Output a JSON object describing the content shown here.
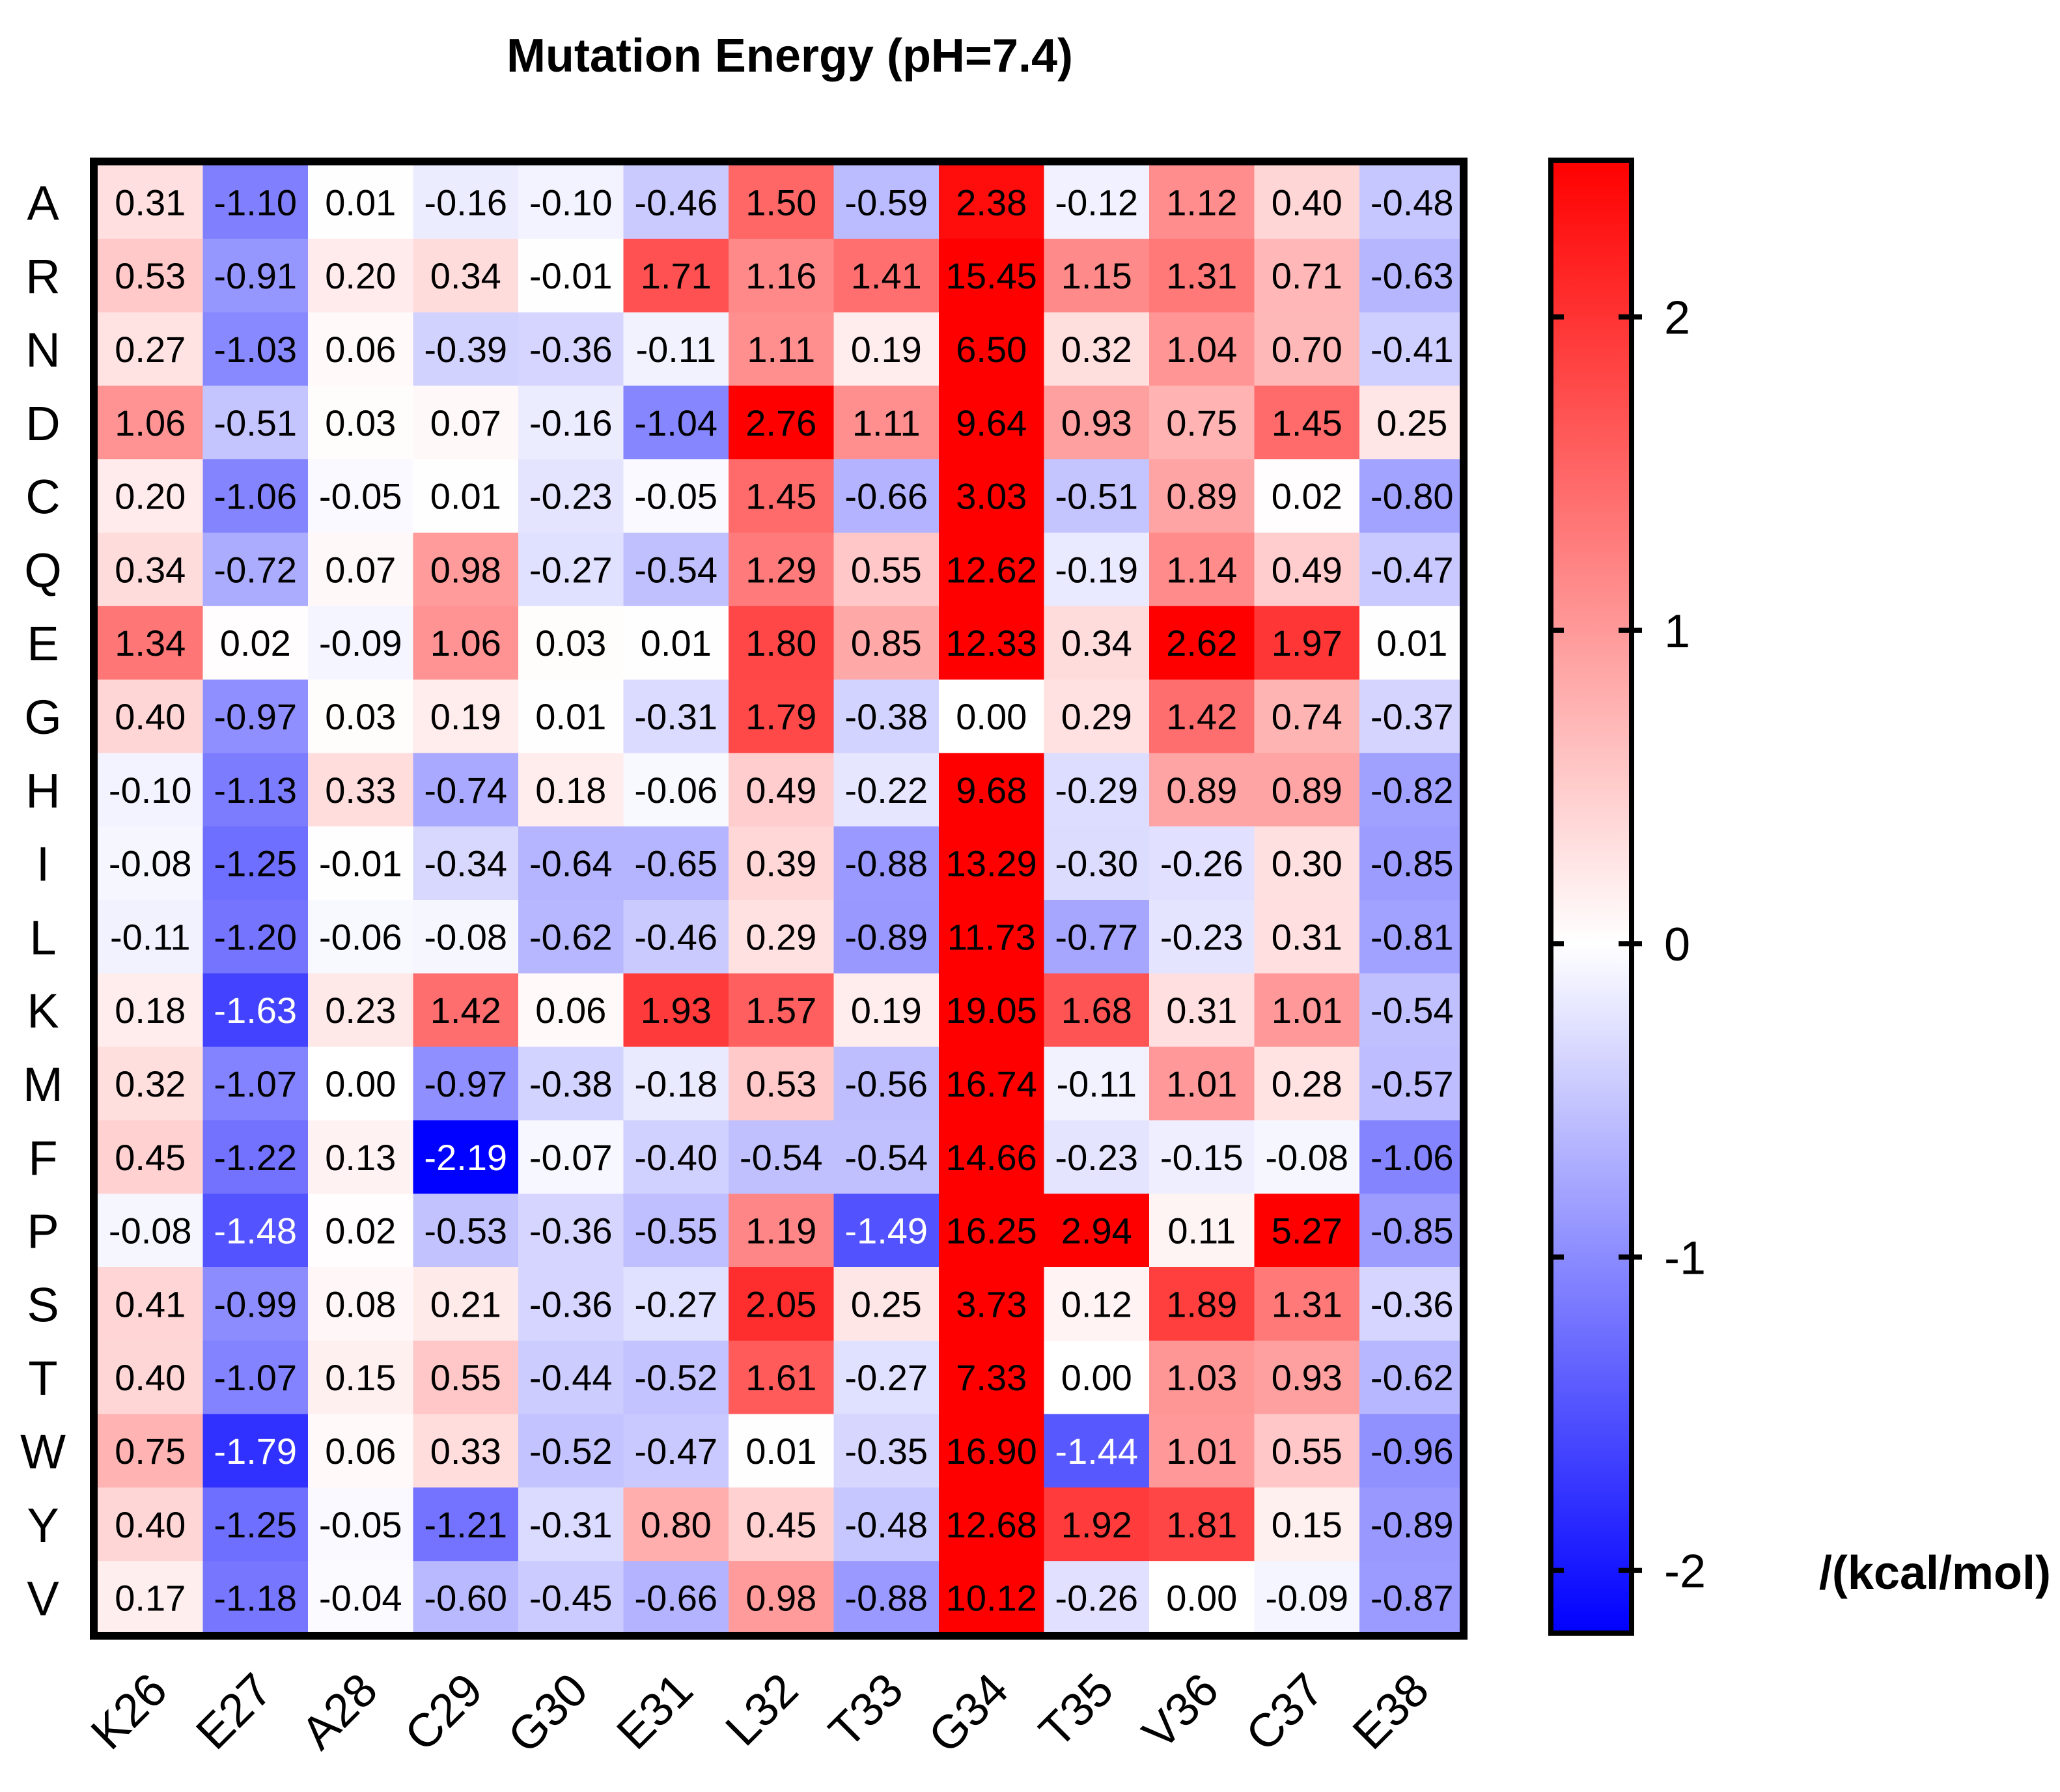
{
  "chart_data": {
    "type": "heatmap",
    "title": "Mutation Energy (pH=7.4)",
    "rows": [
      "A",
      "R",
      "N",
      "D",
      "C",
      "Q",
      "E",
      "G",
      "H",
      "I",
      "L",
      "K",
      "M",
      "F",
      "P",
      "S",
      "T",
      "W",
      "Y",
      "V"
    ],
    "columns": [
      "K26",
      "E27",
      "A28",
      "C29",
      "G30",
      "E31",
      "L32",
      "T33",
      "G34",
      "T35",
      "V36",
      "C37",
      "E38"
    ],
    "values": [
      [
        0.31,
        -1.1,
        0.01,
        -0.16,
        -0.1,
        -0.46,
        1.5,
        -0.59,
        2.38,
        -0.12,
        1.12,
        0.4,
        -0.48
      ],
      [
        0.53,
        -0.91,
        0.2,
        0.34,
        -0.01,
        1.71,
        1.16,
        1.41,
        15.45,
        1.15,
        1.31,
        0.71,
        -0.63
      ],
      [
        0.27,
        -1.03,
        0.06,
        -0.39,
        -0.36,
        -0.11,
        1.11,
        0.19,
        6.5,
        0.32,
        1.04,
        0.7,
        -0.41
      ],
      [
        1.06,
        -0.51,
        0.03,
        0.07,
        -0.16,
        -1.04,
        2.76,
        1.11,
        9.64,
        0.93,
        0.75,
        1.45,
        0.25
      ],
      [
        0.2,
        -1.06,
        -0.05,
        0.01,
        -0.23,
        -0.05,
        1.45,
        -0.66,
        3.03,
        -0.51,
        0.89,
        0.02,
        -0.8
      ],
      [
        0.34,
        -0.72,
        0.07,
        0.98,
        -0.27,
        -0.54,
        1.29,
        0.55,
        12.62,
        -0.19,
        1.14,
        0.49,
        -0.47
      ],
      [
        1.34,
        0.02,
        -0.09,
        1.06,
        0.03,
        0.01,
        1.8,
        0.85,
        12.33,
        0.34,
        2.62,
        1.97,
        0.01
      ],
      [
        0.4,
        -0.97,
        0.03,
        0.19,
        0.01,
        -0.31,
        1.79,
        -0.38,
        0.0,
        0.29,
        1.42,
        0.74,
        -0.37
      ],
      [
        -0.1,
        -1.13,
        0.33,
        -0.74,
        0.18,
        -0.06,
        0.49,
        -0.22,
        9.68,
        -0.29,
        0.89,
        0.89,
        -0.82
      ],
      [
        -0.08,
        -1.25,
        -0.01,
        -0.34,
        -0.64,
        -0.65,
        0.39,
        -0.88,
        13.29,
        -0.3,
        -0.26,
        0.3,
        -0.85
      ],
      [
        -0.11,
        -1.2,
        -0.06,
        -0.08,
        -0.62,
        -0.46,
        0.29,
        -0.89,
        11.73,
        -0.77,
        -0.23,
        0.31,
        -0.81
      ],
      [
        0.18,
        -1.63,
        0.23,
        1.42,
        0.06,
        1.93,
        1.57,
        0.19,
        19.05,
        1.68,
        0.31,
        1.01,
        -0.54
      ],
      [
        0.32,
        -1.07,
        0.0,
        -0.97,
        -0.38,
        -0.18,
        0.53,
        -0.56,
        16.74,
        -0.11,
        1.01,
        0.28,
        -0.57
      ],
      [
        0.45,
        -1.22,
        0.13,
        -2.19,
        -0.07,
        -0.4,
        -0.54,
        -0.54,
        14.66,
        -0.23,
        -0.15,
        -0.08,
        -1.06
      ],
      [
        -0.08,
        -1.48,
        0.02,
        -0.53,
        -0.36,
        -0.55,
        1.19,
        -1.49,
        16.25,
        2.94,
        0.11,
        5.27,
        -0.85
      ],
      [
        0.41,
        -0.99,
        0.08,
        0.21,
        -0.36,
        -0.27,
        2.05,
        0.25,
        3.73,
        0.12,
        1.89,
        1.31,
        -0.36
      ],
      [
        0.4,
        -1.07,
        0.15,
        0.55,
        -0.44,
        -0.52,
        1.61,
        -0.27,
        7.33,
        0.0,
        1.03,
        0.93,
        -0.62
      ],
      [
        0.75,
        -1.79,
        0.06,
        0.33,
        -0.52,
        -0.47,
        0.01,
        -0.35,
        16.9,
        -1.44,
        1.01,
        0.55,
        -0.96
      ],
      [
        0.4,
        -1.25,
        -0.05,
        -1.21,
        -0.31,
        0.8,
        0.45,
        -0.48,
        12.68,
        1.92,
        1.81,
        0.15,
        -0.89
      ],
      [
        0.17,
        -1.18,
        -0.04,
        -0.6,
        -0.45,
        -0.66,
        0.98,
        -0.88,
        10.12,
        -0.26,
        0.0,
        -0.09,
        -0.87
      ]
    ],
    "colorbar": {
      "min": -2.2,
      "max": 2.5,
      "ticks": [
        2,
        1,
        0,
        -1,
        -2
      ],
      "tick_labels": [
        "2",
        "1",
        "0",
        "-1",
        "-2"
      ],
      "unit_label": "/(kcal/mol)",
      "low_color": "#0000ff",
      "mid_color": "#ffffff",
      "high_color": "#ff0000"
    }
  }
}
